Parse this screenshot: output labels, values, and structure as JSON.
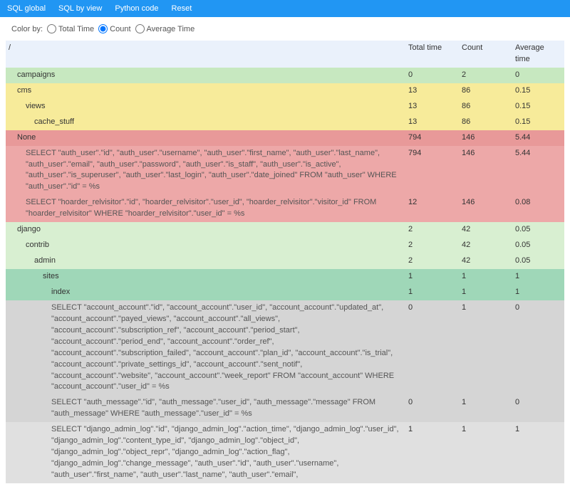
{
  "nav": {
    "sql_global": "SQL global",
    "sql_by_view": "SQL by view",
    "python_code": "Python code",
    "reset": "Reset"
  },
  "colorby": {
    "label": "Color by:",
    "options": {
      "total": "Total Time",
      "count": "Count",
      "avg": "Average Time"
    },
    "selected": "count"
  },
  "columns": {
    "total": "Total time",
    "count": "Count",
    "avg": "Average time"
  },
  "colors": {
    "navbar": "#2196f3",
    "header_row": "#e8eff9",
    "green": "#c7e8c0",
    "light_green": "#d8efd1",
    "yellow": "#f7eb9a",
    "red": "#e89999",
    "red_lt": "#eda8a8",
    "teal": "#9fd7b8",
    "teal_lt": "#b5e0c7",
    "gray": "#d5d5d5",
    "gray_lt": "#e0e0e0"
  },
  "rows": [
    {
      "indent": 0,
      "label": "/",
      "total": "",
      "count": "",
      "avg": "",
      "cls": "c-hdr",
      "header": true
    },
    {
      "indent": 1,
      "label": "campaigns",
      "total": "0",
      "count": "2",
      "avg": "0",
      "cls": "c-green"
    },
    {
      "indent": 1,
      "label": "cms",
      "total": "13",
      "count": "86",
      "avg": "0.15",
      "cls": "c-yellow"
    },
    {
      "indent": 2,
      "label": "views",
      "total": "13",
      "count": "86",
      "avg": "0.15",
      "cls": "c-yellow"
    },
    {
      "indent": 3,
      "label": "cache_stuff",
      "total": "13",
      "count": "86",
      "avg": "0.15",
      "cls": "c-yellow"
    },
    {
      "indent": 1,
      "label": "None",
      "total": "794",
      "count": "146",
      "avg": "5.44",
      "cls": "c-red"
    },
    {
      "indent": 2,
      "label": "SELECT \"auth_user\".\"id\", \"auth_user\".\"username\", \"auth_user\".\"first_name\", \"auth_user\".\"last_name\", \"auth_user\".\"email\", \"auth_user\".\"password\", \"auth_user\".\"is_staff\", \"auth_user\".\"is_active\", \"auth_user\".\"is_superuser\", \"auth_user\".\"last_login\", \"auth_user\".\"date_joined\" FROM \"auth_user\" WHERE \"auth_user\".\"id\" = %s",
      "total": "794",
      "count": "146",
      "avg": "5.44",
      "cls": "c-red-lt",
      "sql": true
    },
    {
      "indent": 2,
      "label": "SELECT \"hoarder_relvisitor\".\"id\", \"hoarder_relvisitor\".\"user_id\", \"hoarder_relvisitor\".\"visitor_id\" FROM \"hoarder_relvisitor\" WHERE \"hoarder_relvisitor\".\"user_id\" = %s",
      "total": "12",
      "count": "146",
      "avg": "0.08",
      "cls": "c-red-lt",
      "sql": true
    },
    {
      "indent": 1,
      "label": "django",
      "total": "2",
      "count": "42",
      "avg": "0.05",
      "cls": "c-light-green"
    },
    {
      "indent": 2,
      "label": "contrib",
      "total": "2",
      "count": "42",
      "avg": "0.05",
      "cls": "c-light-green"
    },
    {
      "indent": 3,
      "label": "admin",
      "total": "2",
      "count": "42",
      "avg": "0.05",
      "cls": "c-light-green"
    },
    {
      "indent": 4,
      "label": "sites",
      "total": "1",
      "count": "1",
      "avg": "1",
      "cls": "c-teal"
    },
    {
      "indent": 5,
      "label": "index",
      "total": "1",
      "count": "1",
      "avg": "1",
      "cls": "c-teal"
    },
    {
      "indent": 5,
      "label": "SELECT \"account_account\".\"id\", \"account_account\".\"user_id\", \"account_account\".\"updated_at\", \"account_account\".\"payed_views\", \"account_account\".\"all_views\", \"account_account\".\"subscription_ref\", \"account_account\".\"period_start\", \"account_account\".\"period_end\", \"account_account\".\"order_ref\", \"account_account\".\"subscription_failed\", \"account_account\".\"plan_id\", \"account_account\".\"is_trial\", \"account_account\".\"private_settings_id\", \"account_account\".\"sent_notif\", \"account_account\".\"website\", \"account_account\".\"week_report\" FROM \"account_account\" WHERE \"account_account\".\"user_id\" = %s",
      "total": "0",
      "count": "1",
      "avg": "0",
      "cls": "c-gray",
      "sql": true
    },
    {
      "indent": 5,
      "label": "SELECT \"auth_message\".\"id\", \"auth_message\".\"user_id\", \"auth_message\".\"message\" FROM \"auth_message\" WHERE \"auth_message\".\"user_id\" = %s",
      "total": "0",
      "count": "1",
      "avg": "0",
      "cls": "c-gray",
      "sql": true
    },
    {
      "indent": 5,
      "label": "SELECT \"django_admin_log\".\"id\", \"django_admin_log\".\"action_time\", \"django_admin_log\".\"user_id\", \"django_admin_log\".\"content_type_id\", \"django_admin_log\".\"object_id\", \"django_admin_log\".\"object_repr\", \"django_admin_log\".\"action_flag\", \"django_admin_log\".\"change_message\", \"auth_user\".\"id\", \"auth_user\".\"username\", \"auth_user\".\"first_name\", \"auth_user\".\"last_name\", \"auth_user\".\"email\",",
      "total": "1",
      "count": "1",
      "avg": "1",
      "cls": "c-gray-lt",
      "sql": true
    }
  ]
}
